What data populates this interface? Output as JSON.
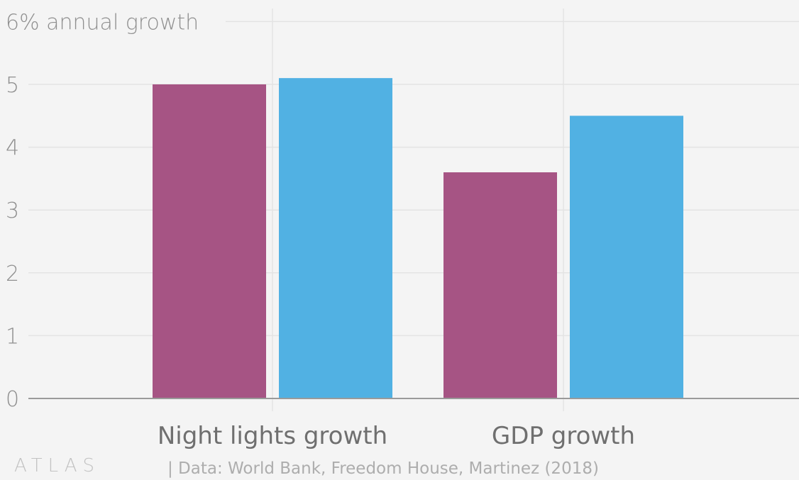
{
  "chart_data": {
    "type": "bar",
    "title": "",
    "ylabel": "annual growth",
    "top_tick_label": "6% annual growth",
    "yticks": [
      "0",
      "1",
      "2",
      "3",
      "4",
      "5"
    ],
    "ylim": [
      0,
      6
    ],
    "categories": [
      "Night lights growth",
      "GDP growth"
    ],
    "series": [
      {
        "values": [
          5.0,
          3.6
        ],
        "color": "#a65484"
      },
      {
        "values": [
          5.1,
          4.5
        ],
        "color": "#51b1e3"
      }
    ],
    "grid": true,
    "legend": "none"
  },
  "footer": {
    "logo": "ATLAS",
    "source": "| Data: World Bank, Freedom House, Martinez (2018)"
  }
}
